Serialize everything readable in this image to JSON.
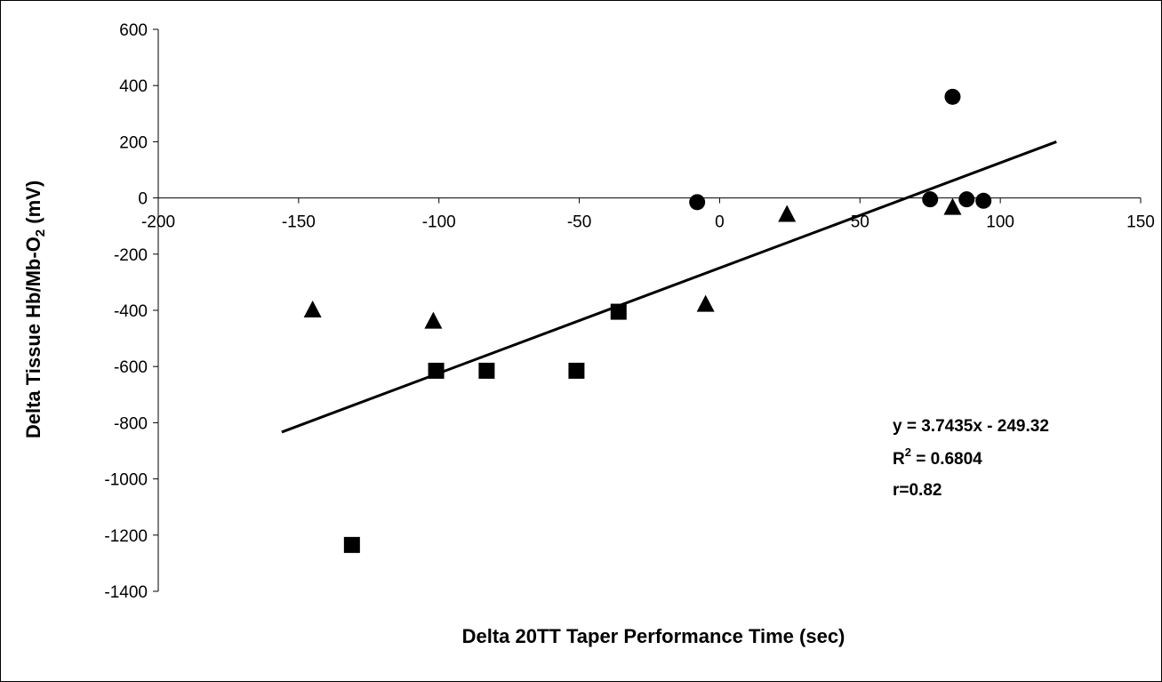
{
  "chart_data": {
    "type": "scatter",
    "title": "",
    "xlabel": "Delta 20TT Taper Performance Time (sec)",
    "ylabel_main": "Delta Tissue Hb/Mb-O",
    "ylabel_sub": "2",
    "ylabel_unit": " (mV)",
    "xlim": [
      -200,
      150
    ],
    "ylim": [
      -1400,
      600
    ],
    "x_ticks": [
      -200,
      -150,
      -100,
      -50,
      0,
      50,
      100,
      150
    ],
    "y_ticks": [
      600,
      400,
      200,
      0,
      -200,
      -400,
      -600,
      -800,
      -1000,
      -1200,
      -1400
    ],
    "grid": false,
    "legend": "none",
    "colors": {
      "markers": "#000000",
      "trendline": "#000000",
      "axes": "#000000"
    },
    "series": [
      {
        "marker": "circle",
        "points": [
          {
            "x": -8,
            "y": -15
          },
          {
            "x": 75,
            "y": -5
          },
          {
            "x": 83,
            "y": 360
          },
          {
            "x": 88,
            "y": -5
          },
          {
            "x": 94,
            "y": -10
          }
        ]
      },
      {
        "marker": "triangle",
        "points": [
          {
            "x": -145,
            "y": -400
          },
          {
            "x": -102,
            "y": -440
          },
          {
            "x": -5,
            "y": -380
          },
          {
            "x": 24,
            "y": -60
          },
          {
            "x": 83,
            "y": -35
          }
        ]
      },
      {
        "marker": "square",
        "points": [
          {
            "x": -131,
            "y": -1235
          },
          {
            "x": -101,
            "y": -615
          },
          {
            "x": -83,
            "y": -615
          },
          {
            "x": -51,
            "y": -615
          },
          {
            "x": -36,
            "y": -405
          }
        ]
      }
    ],
    "trendline": {
      "slope": 3.7435,
      "intercept": -249.32,
      "x_range": [
        -156,
        120
      ],
      "equation": "y = 3.7435x - 249.32",
      "r2_prefix": "R",
      "r2_sup": "2",
      "r2_value": " = 0.6804",
      "r_text": "r=0.82"
    }
  }
}
